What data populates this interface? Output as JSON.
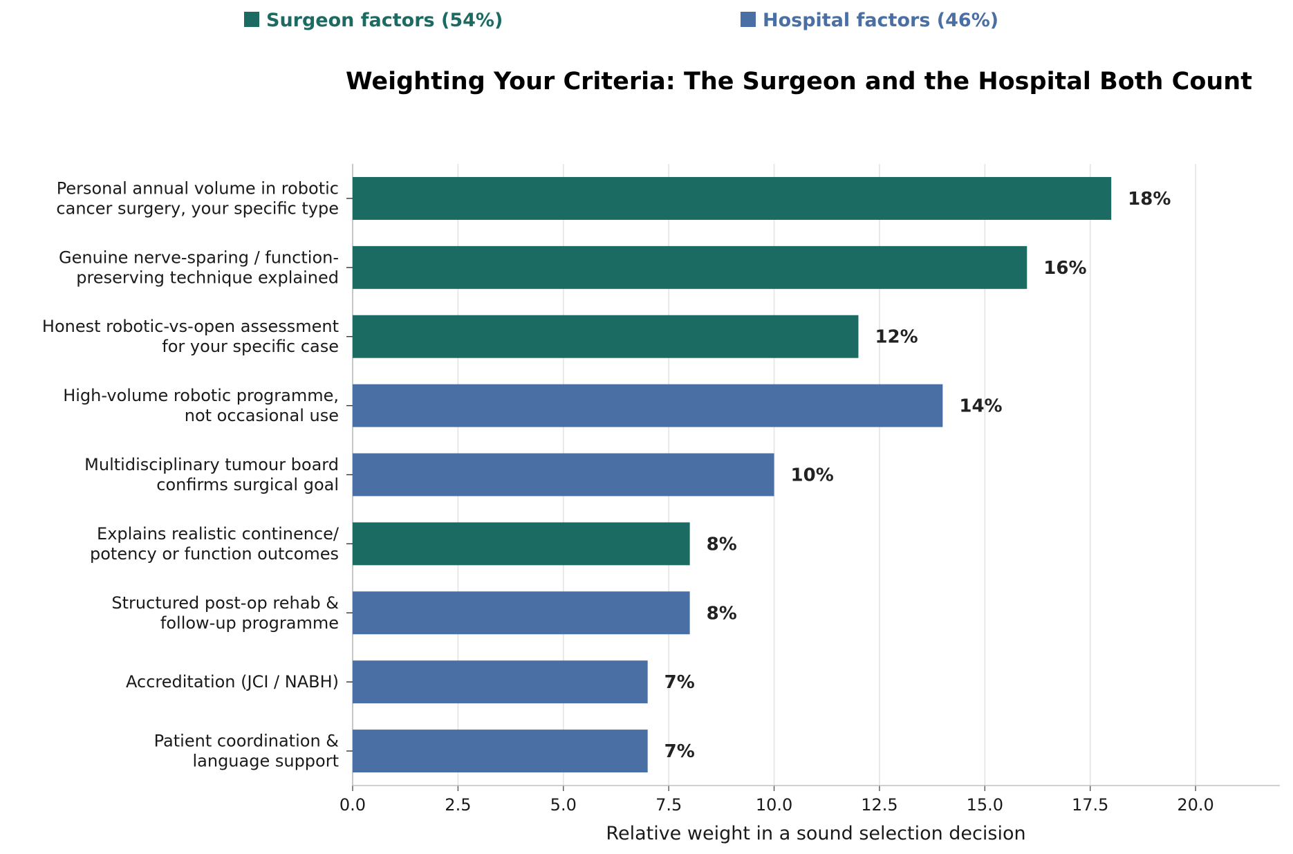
{
  "legend": {
    "surgeon": "Surgeon factors (54%)",
    "hospital": "Hospital factors (46%)"
  },
  "chart_data": {
    "type": "bar",
    "orientation": "horizontal",
    "title": "Weighting Your Criteria: The Surgeon and the Hospital Both Count",
    "xlabel": "Relative weight in a sound selection decision",
    "ylabel": "",
    "xlim": [
      0,
      22
    ],
    "xticks": [
      "0.0",
      "2.5",
      "5.0",
      "7.5",
      "10.0",
      "12.5",
      "15.0",
      "17.5",
      "20.0"
    ],
    "grid": "vertical",
    "legend_position": "top",
    "colors": {
      "surgeon": "#1c6b62",
      "hospital": "#4a6fa5"
    },
    "categories": [
      [
        "Personal annual volume in robotic",
        "cancer surgery, your specific type"
      ],
      [
        "Genuine nerve-sparing / function-",
        "preserving technique explained"
      ],
      [
        "Honest robotic-vs-open assessment",
        "for your specific case"
      ],
      [
        "High-volume robotic programme,",
        "not occasional use"
      ],
      [
        "Multidisciplinary tumour board",
        "confirms surgical goal"
      ],
      [
        "Explains realistic continence/",
        "potency or function outcomes"
      ],
      [
        "Structured post-op rehab &",
        "follow-up programme"
      ],
      [
        "Accreditation (JCI / NABH)"
      ],
      [
        "Patient coordination &",
        "language support"
      ]
    ],
    "values": [
      18,
      16,
      12,
      14,
      10,
      8,
      8,
      7,
      7
    ],
    "group": [
      "surgeon",
      "surgeon",
      "surgeon",
      "hospital",
      "hospital",
      "surgeon",
      "hospital",
      "hospital",
      "hospital"
    ],
    "data_labels": [
      "18%",
      "16%",
      "12%",
      "14%",
      "10%",
      "8%",
      "8%",
      "7%",
      "7%"
    ]
  }
}
